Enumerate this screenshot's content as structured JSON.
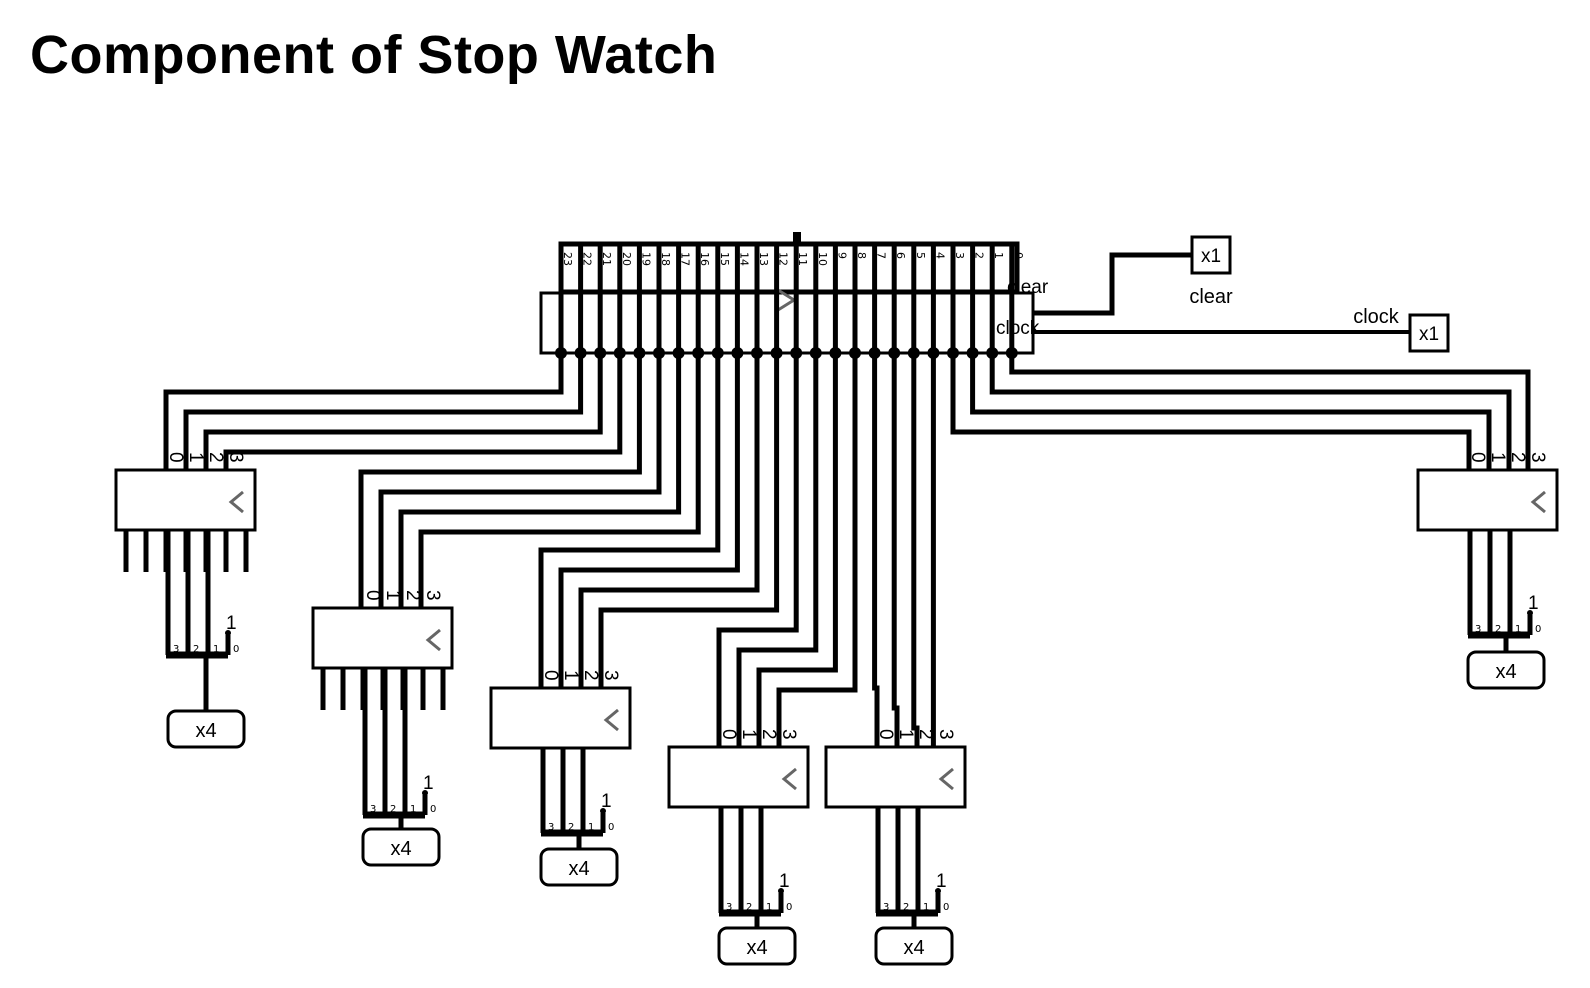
{
  "title": "Component of Stop Watch",
  "counter": {
    "bit_labels": [
      "23",
      "22",
      "21",
      "20",
      "19",
      "18",
      "17",
      "16",
      "15",
      "14",
      "13",
      "12",
      "11",
      "10",
      "9",
      "8",
      "7",
      "6",
      "5",
      "4",
      "3",
      "2",
      "1",
      "0"
    ],
    "port_clear": "clear",
    "port_clock": "clock"
  },
  "inputs": {
    "clear": {
      "pin": "x1",
      "label": "clear"
    },
    "clock": {
      "pin": "x1",
      "label": "clock"
    }
  },
  "splitter": {
    "in_labels": [
      "0",
      "1",
      "2",
      "3"
    ],
    "out_labels": [
      "3",
      "2",
      "1",
      "0"
    ],
    "constant": "1"
  },
  "outputs": [
    "x4",
    "x4",
    "x4",
    "x4",
    "x4",
    "x4"
  ]
}
